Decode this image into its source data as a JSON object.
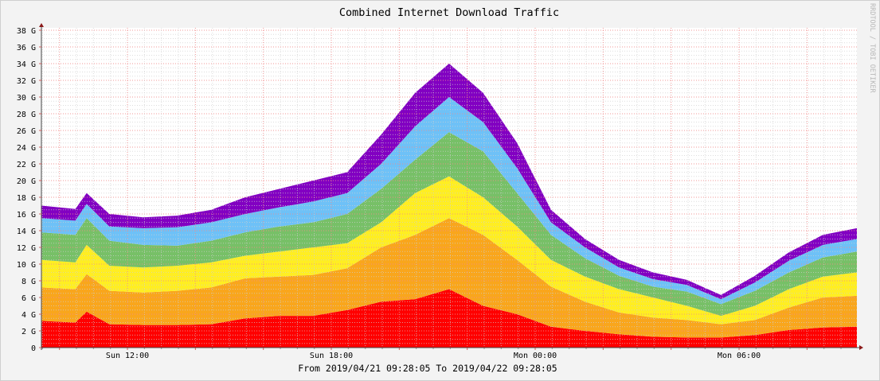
{
  "chart_data": {
    "type": "area",
    "stacked": true,
    "title": "Combined Internet Download Traffic",
    "footer": "From 2019/04/21 09:28:05 To 2019/04/22 09:28:05",
    "watermark": "RRDTOOL / TOBI OETIKER",
    "xlabel": "",
    "ylabel": "",
    "ylim": [
      0,
      38
    ],
    "y_unit": "G",
    "xlim": [
      "2019-04-21 09:28:05",
      "2019-04-22 09:28:05"
    ],
    "grid": true,
    "y_ticks": [
      "0",
      "2 G",
      "4 G",
      "6 G",
      "8 G",
      "10 G",
      "12 G",
      "14 G",
      "16 G",
      "18 G",
      "20 G",
      "22 G",
      "24 G",
      "26 G",
      "28 G",
      "30 G",
      "32 G",
      "34 G",
      "36 G",
      "38 G"
    ],
    "x_ticks": [
      {
        "label": "Sun 12:00",
        "time": "2019-04-21 12:00"
      },
      {
        "label": "Sun 18:00",
        "time": "2019-04-21 18:00"
      },
      {
        "label": "Mon 00:00",
        "time": "2019-04-22 00:00"
      },
      {
        "label": "Mon 06:00",
        "time": "2019-04-22 06:00"
      }
    ],
    "x": [
      "2019-04-21 09:28",
      "2019-04-21 10:28",
      "2019-04-21 10:48",
      "2019-04-21 11:28",
      "2019-04-21 12:28",
      "2019-04-21 13:28",
      "2019-04-21 14:28",
      "2019-04-21 15:28",
      "2019-04-21 16:28",
      "2019-04-21 17:28",
      "2019-04-21 18:28",
      "2019-04-21 19:28",
      "2019-04-21 20:28",
      "2019-04-21 21:28",
      "2019-04-21 22:28",
      "2019-04-21 23:28",
      "2019-04-22 00:28",
      "2019-04-22 01:28",
      "2019-04-22 02:28",
      "2019-04-22 03:28",
      "2019-04-22 04:28",
      "2019-04-22 05:28",
      "2019-04-22 06:28",
      "2019-04-22 07:28",
      "2019-04-22 08:28",
      "2019-04-22 09:28"
    ],
    "series": [
      {
        "color": "#ff0000",
        "values": [
          3.2,
          3.0,
          4.3,
          2.8,
          2.7,
          2.7,
          2.8,
          3.5,
          3.8,
          3.8,
          4.5,
          5.5,
          5.8,
          7.0,
          5.0,
          4.0,
          2.5,
          2.0,
          1.6,
          1.3,
          1.2,
          1.2,
          1.5,
          2.1,
          2.4,
          2.5
        ]
      },
      {
        "color": "#f9a61c",
        "values": [
          4.0,
          4.0,
          4.5,
          4.0,
          3.9,
          4.1,
          4.4,
          4.8,
          4.7,
          4.9,
          5.0,
          6.5,
          7.7,
          8.5,
          8.5,
          6.5,
          4.8,
          3.5,
          2.6,
          2.3,
          2.1,
          1.6,
          1.8,
          2.7,
          3.6,
          3.7
        ]
      },
      {
        "color": "#ffee22",
        "values": [
          3.3,
          3.2,
          3.5,
          3.0,
          3.0,
          3.0,
          3.0,
          2.7,
          3.0,
          3.3,
          3.0,
          3.0,
          5.0,
          5.0,
          4.5,
          4.0,
          3.2,
          3.0,
          2.8,
          2.4,
          1.7,
          1.0,
          1.7,
          2.2,
          2.5,
          2.8
        ]
      },
      {
        "color": "#77c067",
        "values": [
          3.3,
          3.3,
          3.2,
          3.0,
          2.7,
          2.4,
          2.6,
          2.8,
          3.0,
          3.0,
          3.5,
          4.0,
          4.0,
          5.3,
          5.5,
          4.0,
          3.0,
          2.2,
          1.6,
          1.3,
          1.7,
          1.4,
          1.8,
          2.0,
          2.3,
          2.5
        ]
      },
      {
        "color": "#6ec1f7",
        "values": [
          1.7,
          1.7,
          1.7,
          1.7,
          2.0,
          2.2,
          2.2,
          2.2,
          2.3,
          2.5,
          2.5,
          3.0,
          4.0,
          4.2,
          3.5,
          3.0,
          1.5,
          1.3,
          1.0,
          0.9,
          0.8,
          0.6,
          1.0,
          1.4,
          1.5,
          1.5
        ]
      },
      {
        "color": "#8200c2",
        "values": [
          1.5,
          1.4,
          1.3,
          1.5,
          1.3,
          1.4,
          1.5,
          2.0,
          2.2,
          2.5,
          2.5,
          3.5,
          4.0,
          4.0,
          3.5,
          3.0,
          1.5,
          1.0,
          0.9,
          0.8,
          0.6,
          0.5,
          0.8,
          1.0,
          1.2,
          1.3
        ]
      }
    ]
  }
}
